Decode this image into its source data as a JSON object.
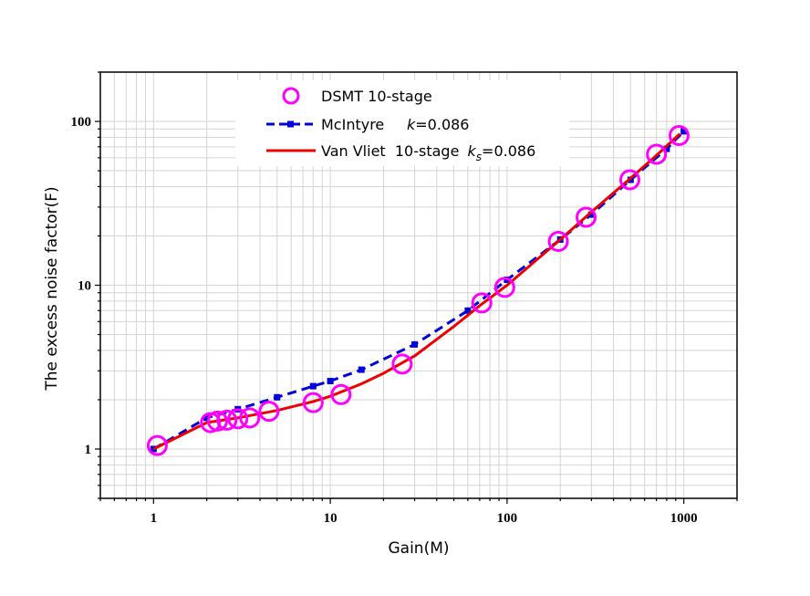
{
  "chart_data": {
    "type": "scatter",
    "xlabel": "Gain(M)",
    "ylabel": "The excess noise factor(F)",
    "xscale": "log",
    "yscale": "log",
    "xlim": [
      0.5,
      2000
    ],
    "ylim": [
      0.5,
      200
    ],
    "x_ticks": [
      1,
      10,
      100,
      1000
    ],
    "x_tick_labels": [
      "1",
      "10",
      "100",
      "1000"
    ],
    "y_ticks": [
      1,
      10,
      100
    ],
    "y_tick_labels": [
      "1",
      "10",
      "100"
    ],
    "grid": true,
    "legend_position": "top-center",
    "series": [
      {
        "name": "DSMT 10-stage",
        "kind": "markers",
        "marker": "open-circle",
        "color": "#ff00ff",
        "x": [
          1.05,
          2.1,
          2.3,
          2.6,
          3.0,
          3.5,
          4.5,
          8.0,
          11.5,
          25.5,
          72,
          97,
          195,
          280,
          495,
          700,
          940
        ],
        "y": [
          1.05,
          1.45,
          1.48,
          1.5,
          1.53,
          1.55,
          1.7,
          1.92,
          2.15,
          3.3,
          7.8,
          9.7,
          18.5,
          26,
          44,
          63,
          82
        ]
      },
      {
        "name": "McIntyre",
        "annotation_var": "k",
        "annotation_value": "=0.086",
        "kind": "dashed-line-square-markers",
        "color": "#0000dd",
        "x": [
          1,
          2,
          3,
          5,
          8,
          10,
          15,
          30,
          60,
          100,
          200,
          300,
          500,
          800,
          1000
        ],
        "y": [
          1.0,
          1.55,
          1.75,
          2.07,
          2.42,
          2.6,
          3.05,
          4.35,
          7.0,
          10.8,
          19,
          27,
          44,
          68,
          87
        ]
      },
      {
        "name": "Van Vliet  10-stage",
        "annotation_var": "k",
        "annotation_sub": "s",
        "annotation_value": "=0.086",
        "kind": "solid-line",
        "color": "#ee0000",
        "x": [
          1,
          2,
          3,
          5,
          8,
          10,
          15,
          20,
          30,
          50,
          70,
          100,
          200,
          300,
          500,
          700,
          950
        ],
        "y": [
          1.0,
          1.45,
          1.55,
          1.72,
          1.95,
          2.1,
          2.5,
          2.9,
          3.7,
          5.6,
          7.5,
          10.0,
          19,
          28,
          45,
          62,
          84
        ]
      }
    ]
  }
}
